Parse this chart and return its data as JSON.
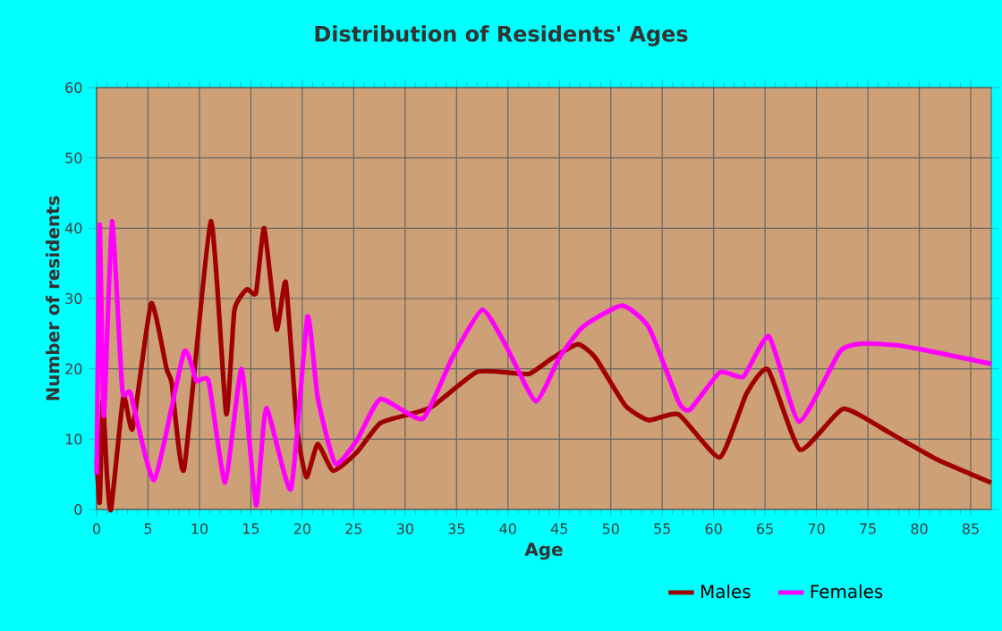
{
  "chart_data": {
    "type": "line",
    "title": "Distribution of Residents' Ages",
    "xlabel": "Age",
    "ylabel": "Number of residents",
    "xlim": [
      0,
      87
    ],
    "ylim": [
      0,
      60
    ],
    "xticks": [
      0,
      5,
      10,
      15,
      20,
      25,
      30,
      35,
      40,
      45,
      50,
      55,
      60,
      65,
      70,
      75,
      80,
      85
    ],
    "yticks": [
      0,
      10,
      20,
      30,
      40,
      50,
      60
    ],
    "grid": true,
    "legend": "bottom",
    "series": [
      {
        "name": "Males",
        "color": "#a00000",
        "x": [
          0,
          0.3,
          0.6,
          1,
          1.4,
          2.6,
          3.5,
          5.3,
          6.8,
          7.3,
          8.5,
          11.1,
          12.6,
          13.4,
          14.6,
          15.5,
          16.3,
          17.5,
          18.4,
          19.5,
          20.4,
          21.5,
          23,
          25.3,
          27.6,
          31.1,
          32.8,
          36.9,
          39.8,
          42.1,
          44.4,
          46.8,
          48.5,
          51.4,
          53.7,
          56.6,
          60.6,
          63.2,
          65.3,
          68.4,
          72.6,
          77,
          81.6,
          87
        ],
        "values": [
          7,
          1,
          15.5,
          5,
          0,
          16,
          11.5,
          29.3,
          20,
          18,
          5.7,
          41,
          13.6,
          28.3,
          31.3,
          30.8,
          40,
          25.6,
          32.3,
          11.4,
          4.6,
          9.3,
          5.5,
          8.1,
          12.3,
          13.8,
          14.8,
          19.5,
          19.5,
          19.3,
          21.6,
          23.5,
          21.6,
          14.8,
          12.7,
          13.5,
          7.4,
          16.5,
          19.9,
          8.5,
          14.3,
          11,
          7.2,
          3.8
        ]
      },
      {
        "name": "Females",
        "color": "#ff00ff",
        "x": [
          0,
          0.3,
          0.7,
          1.5,
          2.5,
          3.3,
          5.6,
          8.5,
          9.7,
          10.9,
          12.5,
          14.1,
          15.5,
          16.5,
          18.9,
          20.5,
          21.5,
          23.2,
          25.3,
          27.6,
          31.7,
          34.6,
          37.5,
          39.8,
          42.7,
          45,
          47.3,
          51.1,
          53.7,
          56.6,
          57.7,
          60.6,
          62.9,
          65.4,
          68.3,
          72.3,
          74.6,
          78.1,
          82.1,
          87
        ],
        "values": [
          5,
          40.5,
          13.3,
          41,
          17,
          16.5,
          4.2,
          22.4,
          18.3,
          18.2,
          3.8,
          20,
          0.6,
          14.4,
          2.9,
          27.4,
          15.9,
          6.5,
          9.8,
          15.7,
          12.9,
          21.6,
          28.4,
          23.3,
          15.4,
          21.6,
          26,
          29,
          25.9,
          15.3,
          14.2,
          19.5,
          18.9,
          24.6,
          12.5,
          22.5,
          23.6,
          23.3,
          22.2,
          20.7
        ]
      }
    ]
  }
}
